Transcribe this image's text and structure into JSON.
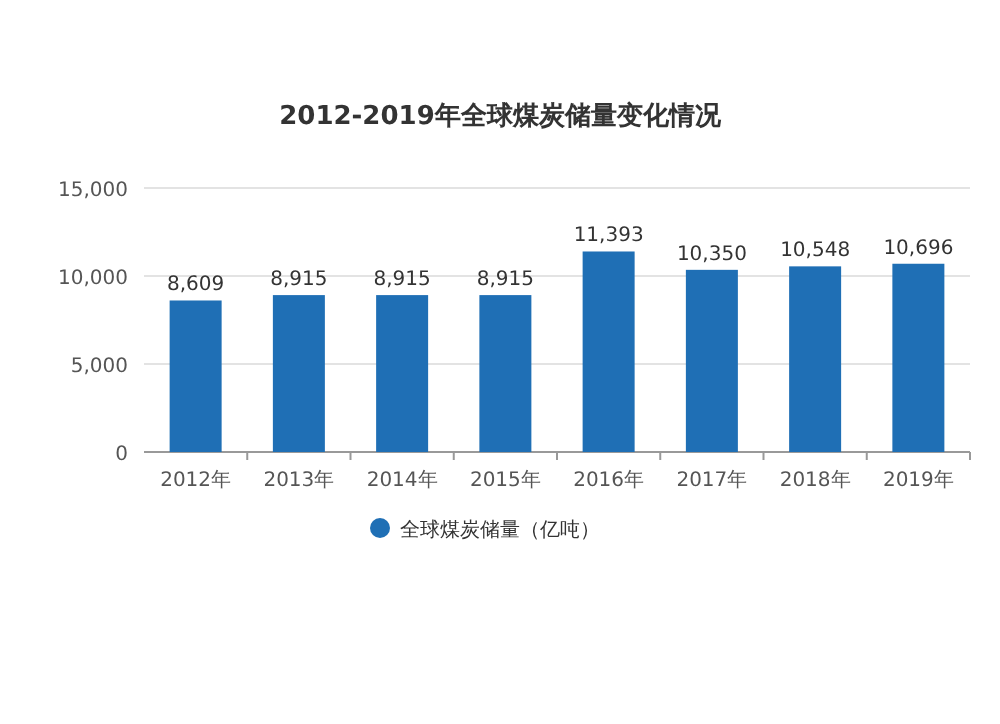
{
  "chart_data": {
    "type": "bar",
    "title": "2012-2019年全球煤炭储量变化情况",
    "categories": [
      "2012年",
      "2013年",
      "2014年",
      "2015年",
      "2016年",
      "2017年",
      "2018年",
      "2019年"
    ],
    "series": [
      {
        "name": "全球煤炭储量（亿吨）",
        "color": "#1f6fb5",
        "values": [
          8609,
          8915,
          8915,
          8915,
          11393,
          10350,
          10548,
          10696
        ]
      }
    ],
    "value_labels": [
      "8,609",
      "8,915",
      "8,915",
      "8,915",
      "11,393",
      "10,350",
      "10,548",
      "10,696"
    ],
    "ylim": [
      0,
      15000
    ],
    "yticks": [
      {
        "value": 0,
        "label": "0"
      },
      {
        "value": 5000,
        "label": "5,000"
      },
      {
        "value": 10000,
        "label": "10,000"
      },
      {
        "value": 15000,
        "label": "15,000"
      }
    ],
    "grid": "y",
    "legend": "bottom"
  }
}
